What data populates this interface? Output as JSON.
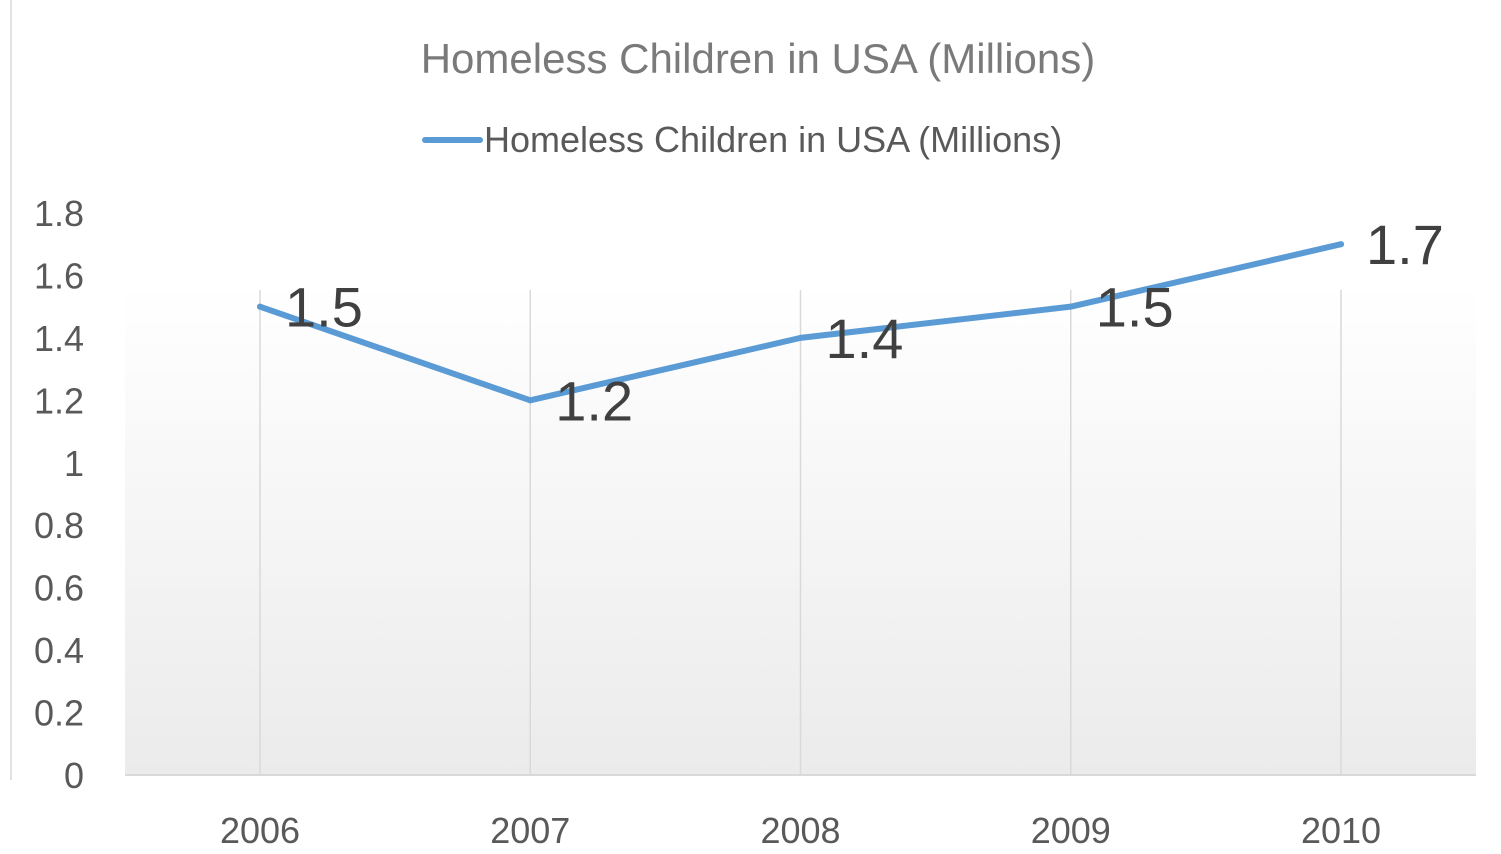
{
  "chart_data": {
    "type": "line",
    "title": "Homeless Children in USA (Millions)",
    "xlabel": "",
    "ylabel": "",
    "categories": [
      "2006",
      "2007",
      "2008",
      "2009",
      "2010"
    ],
    "series": [
      {
        "name": "Homeless Children in USA (Millions)",
        "values": [
          1.5,
          1.2,
          1.4,
          1.5,
          1.7
        ],
        "color": "#5b9bd5"
      }
    ],
    "data_labels": [
      "1.5",
      "1.2",
      "1.4",
      "1.5",
      "1.7"
    ],
    "ylim": [
      0,
      1.8
    ],
    "y_ticks": [
      "0",
      "0.2",
      "0.4",
      "0.6",
      "0.8",
      "1",
      "1.2",
      "1.4",
      "1.6",
      "1.8"
    ],
    "grid": "vertical",
    "legend_position": "top",
    "plot_background": "gradient-light-gray"
  }
}
